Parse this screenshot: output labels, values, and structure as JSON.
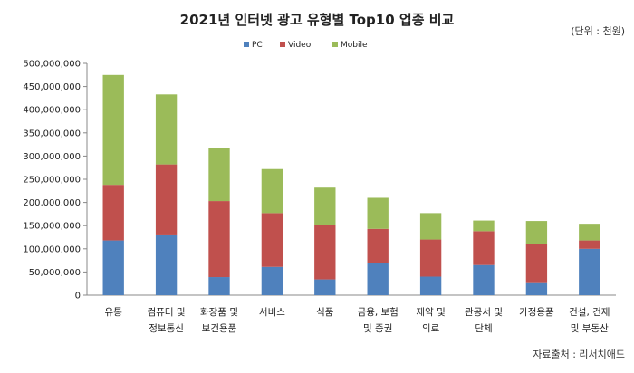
{
  "chart_data": {
    "type": "bar",
    "stacked": true,
    "title": "2021년 인터넷 광고 유형별 Top10 업종 비교",
    "unit_note": "(단위 : 천원)",
    "source": "자료출처 : 리서치애드",
    "legend_position": "top",
    "grid": false,
    "ylim": [
      0,
      500000000
    ],
    "yticks": [
      "0",
      "50,000,000",
      "100,000,000",
      "150,000,000",
      "200,000,000",
      "250,000,000",
      "300,000,000",
      "350,000,000",
      "400,000,000",
      "450,000,000",
      "500,000,000"
    ],
    "categories": [
      [
        "유통"
      ],
      [
        "컴퓨터 및",
        "정보통신"
      ],
      [
        "화장품 및",
        "보건용품"
      ],
      [
        "서비스"
      ],
      [
        "식품"
      ],
      [
        "금융, 보험",
        "및 증권"
      ],
      [
        "제약 및",
        "의료"
      ],
      [
        "관공서 및",
        "단체"
      ],
      [
        "가정용품"
      ],
      [
        "건설, 건재",
        "및 부동산"
      ]
    ],
    "series": [
      {
        "name": "PC",
        "color": "#4f81bd",
        "values": [
          118000000,
          129000000,
          39000000,
          61000000,
          34000000,
          70000000,
          40000000,
          65000000,
          26000000,
          100000000
        ]
      },
      {
        "name": "Video",
        "color": "#c0504d",
        "values": [
          120000000,
          153000000,
          164000000,
          116000000,
          118000000,
          73000000,
          80000000,
          73000000,
          84000000,
          18000000
        ]
      },
      {
        "name": "Mobile",
        "color": "#9bbb59",
        "values": [
          237000000,
          151000000,
          115000000,
          95000000,
          80000000,
          67000000,
          57000000,
          23000000,
          50000000,
          36000000
        ]
      }
    ]
  }
}
